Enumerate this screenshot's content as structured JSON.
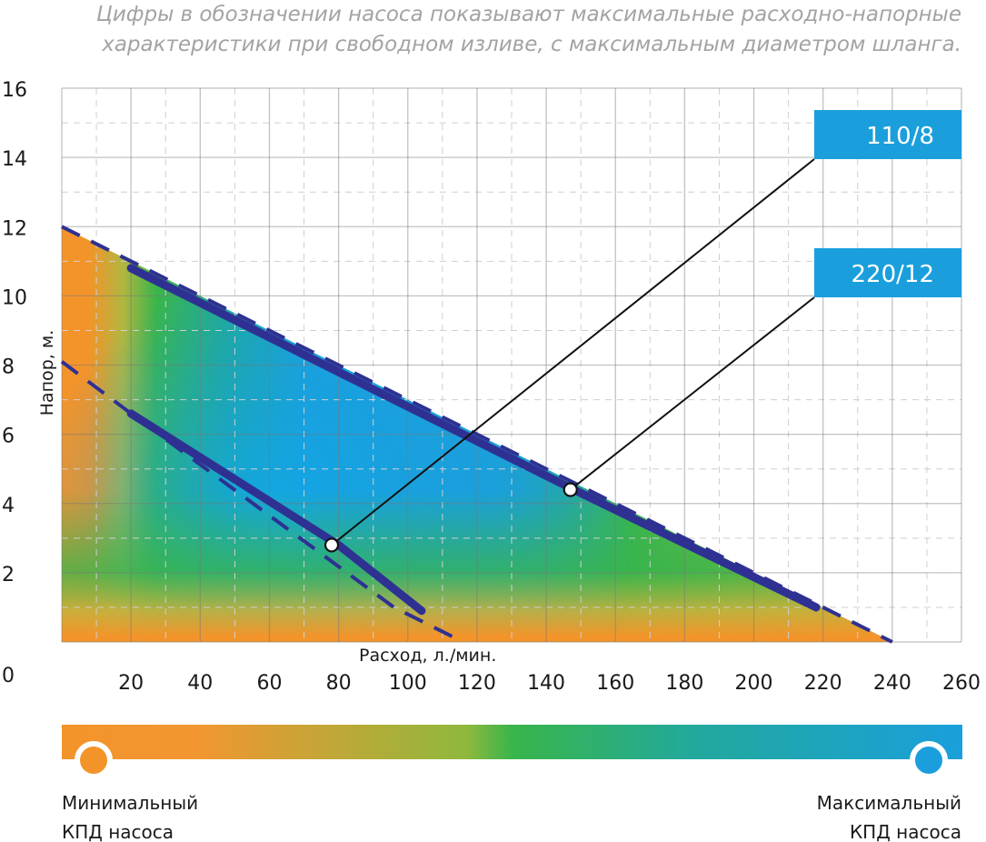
{
  "note": {
    "line1": "Цифры в обозначении насоса показывают максимальные расходно-напорные",
    "line2": "характеристики при свободном изливе, с максимальным диаметром шланга."
  },
  "scale": {
    "min_label_line1": "Минимальный",
    "min_label_line2": "КПД насоса",
    "max_label_line1": "Максимальный",
    "max_label_line2": "КПД насоса",
    "color_min": "#f3942a",
    "color_mid": "#39b54a",
    "color_max": "#1a9fdc"
  },
  "chart_data": {
    "type": "line",
    "xlabel": "Расход, л./мин.",
    "ylabel": "Напор, м.",
    "xlim": [
      0,
      260
    ],
    "ylim": [
      0,
      16
    ],
    "x_ticks": [
      20,
      40,
      60,
      80,
      100,
      120,
      140,
      160,
      180,
      200,
      220,
      240,
      260
    ],
    "y_ticks": [
      0,
      2,
      4,
      6,
      8,
      10,
      12,
      14,
      16
    ],
    "grid": true,
    "series": [
      {
        "name": "110/8",
        "color": "#2e3192",
        "dashed_extension": [
          [
            0,
            8.1
          ],
          [
            20,
            6.6
          ],
          [
            96,
            1.0
          ],
          [
            116,
            0
          ]
        ],
        "points": [
          [
            20,
            6.6
          ],
          [
            80,
            2.8
          ],
          [
            104,
            0.9
          ]
        ],
        "marker": [
          78,
          2.8
        ]
      },
      {
        "name": "220/12",
        "color": "#2e3192",
        "dashed_extension": [
          [
            0,
            12
          ],
          [
            240,
            0
          ]
        ],
        "points": [
          [
            20,
            10.8
          ],
          [
            148,
            4.4
          ],
          [
            218,
            1.0
          ]
        ],
        "marker": [
          147,
          4.4
        ]
      }
    ],
    "callouts": [
      {
        "series": "110/8",
        "label": "110/8",
        "box_color": "#1a9fdc",
        "text_color": "#ffffff"
      },
      {
        "series": "220/12",
        "label": "220/12",
        "box_color": "#1a9fdc",
        "text_color": "#ffffff"
      }
    ]
  }
}
